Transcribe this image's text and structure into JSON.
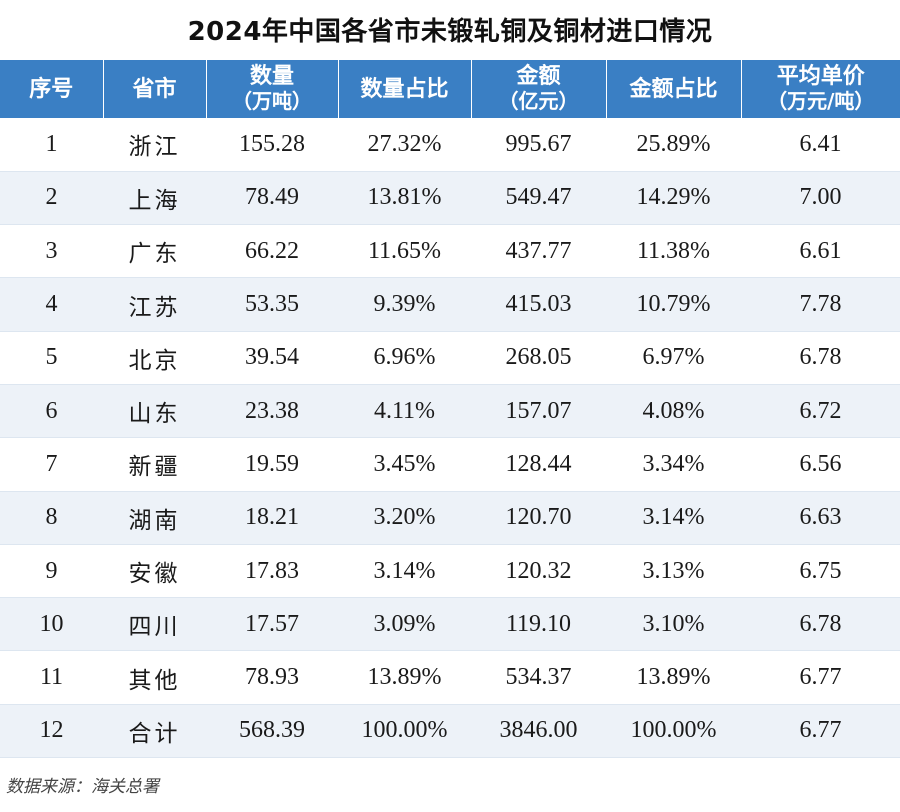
{
  "title": "2024年中国各省市未锻轧铜及铜材进口情况",
  "table": {
    "headers": [
      {
        "main": "序号",
        "sub": ""
      },
      {
        "main": "省市",
        "sub": ""
      },
      {
        "main": "数量",
        "sub": "（万吨）"
      },
      {
        "main": "数量占比",
        "sub": ""
      },
      {
        "main": "金额",
        "sub": "（亿元）"
      },
      {
        "main": "金额占比",
        "sub": ""
      },
      {
        "main": "平均单价",
        "sub": "（万元/吨）"
      }
    ],
    "rows": [
      [
        "1",
        "浙江",
        "155.28",
        "27.32%",
        "995.67",
        "25.89%",
        "6.41"
      ],
      [
        "2",
        "上海",
        "78.49",
        "13.81%",
        "549.47",
        "14.29%",
        "7.00"
      ],
      [
        "3",
        "广东",
        "66.22",
        "11.65%",
        "437.77",
        "11.38%",
        "6.61"
      ],
      [
        "4",
        "江苏",
        "53.35",
        "9.39%",
        "415.03",
        "10.79%",
        "7.78"
      ],
      [
        "5",
        "北京",
        "39.54",
        "6.96%",
        "268.05",
        "6.97%",
        "6.78"
      ],
      [
        "6",
        "山东",
        "23.38",
        "4.11%",
        "157.07",
        "4.08%",
        "6.72"
      ],
      [
        "7",
        "新疆",
        "19.59",
        "3.45%",
        "128.44",
        "3.34%",
        "6.56"
      ],
      [
        "8",
        "湖南",
        "18.21",
        "3.20%",
        "120.70",
        "3.14%",
        "6.63"
      ],
      [
        "9",
        "安徽",
        "17.83",
        "3.14%",
        "120.32",
        "3.13%",
        "6.75"
      ],
      [
        "10",
        "四川",
        "17.57",
        "3.09%",
        "119.10",
        "3.10%",
        "6.78"
      ],
      [
        "11",
        "其他",
        "78.93",
        "13.89%",
        "534.37",
        "13.89%",
        "6.77"
      ],
      [
        "12",
        "合计",
        "568.39",
        "100.00%",
        "3846.00",
        "100.00%",
        "6.77"
      ]
    ]
  },
  "source": "数据来源：海关总署",
  "colors": {
    "header_bg": "#3a7fc4",
    "header_text": "#ffffff",
    "stripe": "#edf2f8"
  }
}
